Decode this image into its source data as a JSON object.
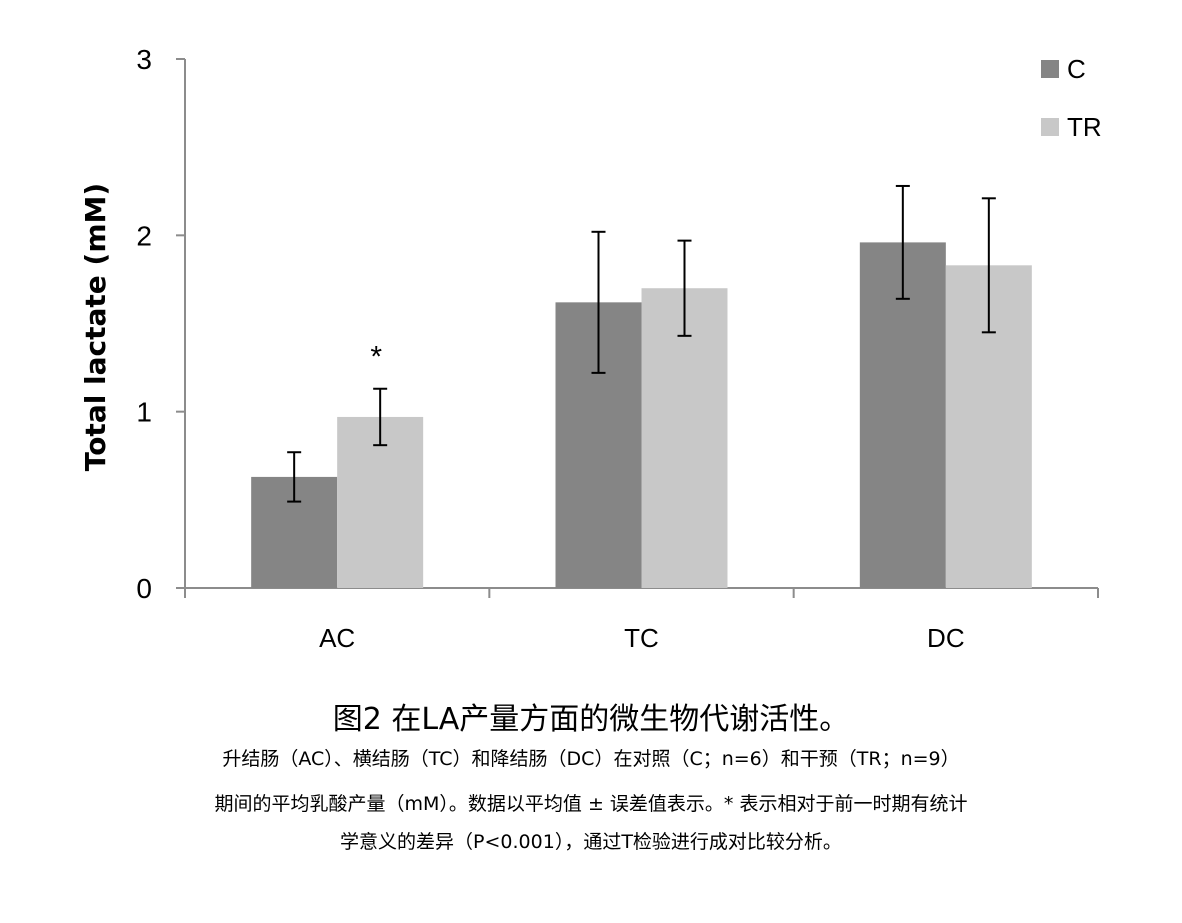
{
  "chart_data": {
    "type": "bar",
    "categories": [
      "AC",
      "TC",
      "DC"
    ],
    "series": [
      {
        "name": "C",
        "color": "#858585",
        "values": [
          0.63,
          1.62,
          1.96
        ],
        "errors": [
          0.14,
          0.4,
          0.32
        ]
      },
      {
        "name": "TR",
        "color": "#c8c8c8",
        "values": [
          0.97,
          1.7,
          1.83
        ],
        "errors": [
          0.16,
          0.27,
          0.38
        ]
      }
    ],
    "title": "",
    "xlabel": "",
    "ylabel": "Total lactate (mM)",
    "ylim": [
      0,
      3
    ],
    "yticks": [
      "0",
      "1",
      "2",
      "3"
    ],
    "grid": false,
    "legend_position": "top-right",
    "annotations": [
      {
        "text": "*",
        "category": "AC",
        "series": "TR"
      }
    ]
  },
  "caption": {
    "title": "图2 在LA产量方面的微生物代谢活性。",
    "line1": "升结肠（AC）、横结肠（TC）和降结肠（DC）在对照（C；n=6）和干预（TR；n=9）",
    "line2": "期间的平均乳酸产量（mM）。数据以平均值 ± 误差值表示。* 表示相对于前一时期有统计",
    "line3": "学意义的差异（P<0.001），通过T检验进行成对比较分析。"
  }
}
